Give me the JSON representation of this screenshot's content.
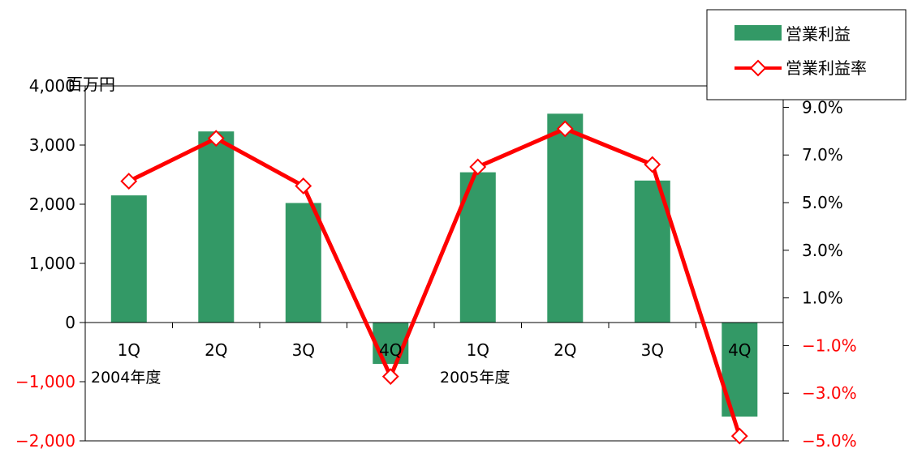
{
  "chart_data": {
    "type": "bar",
    "title": "",
    "categories": [
      "1Q",
      "2Q",
      "3Q",
      "4Q",
      "1Q",
      "2Q",
      "3Q",
      "4Q"
    ],
    "fiscal_year_labels": [
      "2004年度",
      "2005年度"
    ],
    "unit_left": "百万円",
    "series": [
      {
        "name": "営業利益",
        "type": "bar",
        "axis": "left",
        "values": [
          2150,
          3230,
          2020,
          -700,
          2540,
          3530,
          2400,
          -1590
        ]
      },
      {
        "name": "営業利益率",
        "type": "line",
        "axis": "right",
        "values": [
          5.9,
          7.7,
          5.7,
          -2.3,
          6.5,
          8.1,
          6.6,
          -4.8
        ]
      }
    ],
    "y_left": {
      "ylim": [
        -2000,
        4000
      ],
      "ticks": [
        4000,
        3000,
        2000,
        1000,
        0,
        -1000,
        -2000
      ],
      "tick_labels": [
        "4,000",
        "3,000",
        "2,000",
        "1,000",
        "0",
        "−1,000",
        "−2,000"
      ]
    },
    "y_right": {
      "ylim": [
        -5,
        9.9
      ],
      "ticks": [
        9,
        7,
        5,
        3,
        1,
        -1,
        -3,
        -5
      ],
      "tick_labels": [
        "9.0%",
        "7.0%",
        "5.0%",
        "3.0%",
        "1.0%",
        "−1.0%",
        "−3.0%",
        "−5.0%"
      ]
    },
    "legend": {
      "position": "top-right",
      "entries": [
        "営業利益",
        "営業利益率"
      ]
    },
    "grid": false,
    "colors": {
      "bar": "#339966",
      "line": "#ff0000",
      "negative_label": "#ff0000"
    }
  }
}
